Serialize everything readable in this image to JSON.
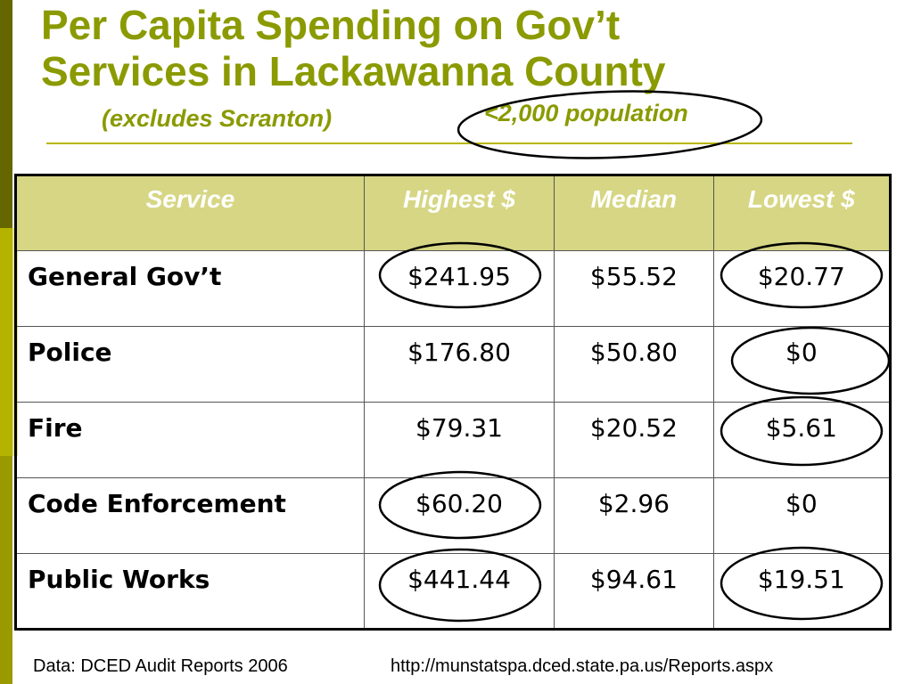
{
  "title_line1": "Per Capita Spending on Gov’t",
  "title_line2": "Services in Lackawanna County",
  "subtitle": "(excludes Scranton)",
  "population_note": "<2,000 population",
  "table": {
    "headers": [
      "Service",
      "Highest $",
      "Median",
      "Lowest $"
    ],
    "rows": [
      [
        "General Gov’t",
        "$241.95",
        "$55.52",
        "$20.77"
      ],
      [
        "Police",
        "$176.80",
        "$50.80",
        "$0"
      ],
      [
        "Fire",
        "$79.31",
        "$20.52",
        "$5.61"
      ],
      [
        "Code Enforcement",
        "$60.20",
        "$2.96",
        "$0"
      ],
      [
        "Public Works",
        "$441.44",
        "$94.61",
        "$19.51"
      ]
    ]
  },
  "footer": {
    "source": "Data: DCED Audit Reports 2006",
    "url": "http://munstatspa.dced.state.pa.us/Reports.aspx"
  },
  "colors": {
    "title": "#8a9a00",
    "header_fill": "#d6d684",
    "accent_bar_dark": "#666600"
  }
}
